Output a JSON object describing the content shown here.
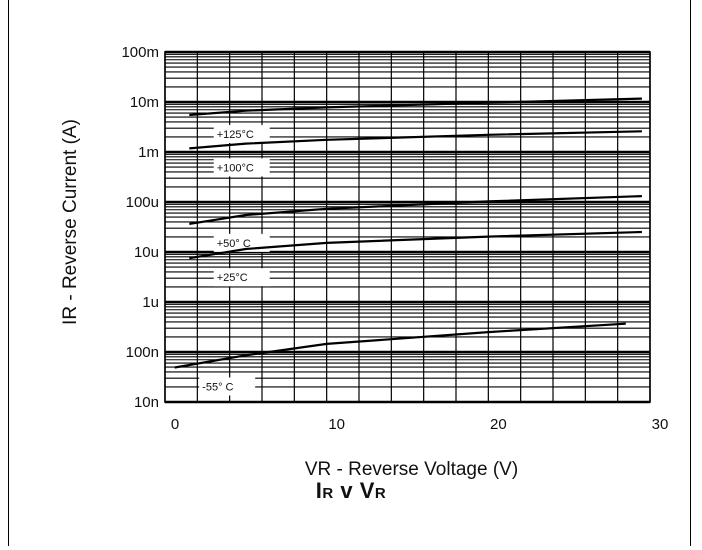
{
  "chart_data": {
    "type": "line",
    "title": "IR v VR",
    "xlabel": "VR - Reverse Voltage (V)",
    "ylabel": "IR - Reverse Current (A)",
    "xlim": [
      0,
      30
    ],
    "ylim": [
      1e-08,
      0.1
    ],
    "y_scale": "log",
    "grid": true,
    "x_ticks": [
      {
        "value": 0,
        "label": "0"
      },
      {
        "value": 10,
        "label": "10"
      },
      {
        "value": 20,
        "label": "20"
      },
      {
        "value": 30,
        "label": "30"
      }
    ],
    "y_ticks": [
      {
        "value": 0.1,
        "label": "100m"
      },
      {
        "value": 0.01,
        "label": "10m"
      },
      {
        "value": 0.001,
        "label": "1m"
      },
      {
        "value": 0.0001,
        "label": "100u"
      },
      {
        "value": 1e-05,
        "label": "10u"
      },
      {
        "value": 1e-06,
        "label": "1u"
      },
      {
        "value": 1e-07,
        "label": "100n"
      },
      {
        "value": 1e-08,
        "label": "10n"
      }
    ],
    "series": [
      {
        "name": "+125°C",
        "x": [
          1.5,
          5,
          10,
          20,
          29.5
        ],
        "y": [
          0.0055,
          0.0067,
          0.0078,
          0.0097,
          0.0117
        ]
      },
      {
        "name": "+100°C",
        "x": [
          1.5,
          5,
          10,
          20,
          29.5
        ],
        "y": [
          0.00118,
          0.00147,
          0.00175,
          0.00221,
          0.00259
        ]
      },
      {
        "name": "+50° C",
        "x": [
          1.5,
          5,
          10,
          20,
          29.5
        ],
        "y": [
          3.65e-05,
          5.5e-05,
          7.3e-05,
          0.000103,
          0.000131
        ]
      },
      {
        "name": "+25°C",
        "x": [
          1.5,
          5,
          10,
          20,
          29.5
        ],
        "y": [
          7.5e-06,
          1.15e-05,
          1.52e-05,
          2.03e-05,
          2.51e-05
        ]
      },
      {
        "name": "-55° C",
        "x": [
          0.6,
          5,
          10,
          20,
          28.5
        ],
        "y": [
          4.9e-08,
          8.6e-08,
          1.45e-07,
          2.5e-07,
          3.68e-07
        ]
      }
    ]
  }
}
